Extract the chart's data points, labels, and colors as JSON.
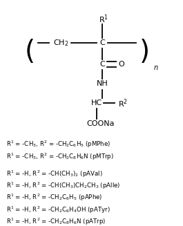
{
  "bg_color": "#ffffff",
  "legend_lines": [
    [
      "R$^1$",
      " = -CH$_3$, R$^2$ = -CH$_2$C$_6$H$_5$ (pMPhe)"
    ],
    [
      "R$^1$",
      " = -CH$_3$, R$^2$ = -CH$_2$C$_8$H$_6$N (pMTrp)"
    ],
    [
      "",
      ""
    ],
    [
      "R$^1$",
      " = -H, R$^2$ = -CH(CH$_3$)$_2$ (pAVal)"
    ],
    [
      "R$^1$",
      " = -H, R$^2$ = -CH(CH$_3$)CH$_2$CH$_3$ (pAlle)"
    ],
    [
      "R$^1$",
      " = -H, R$^2$ = -CH$_2$C$_6$H$_5$ (pAPhe)"
    ],
    [
      "R$^1$",
      " = -H, R$^2$ = -CH$_2$C$_6$H$_4$OH (pATyr)"
    ],
    [
      "R$^1$",
      " = -H, R$^2$ = -CH$_2$C$_8$H$_6$N (pATrp)"
    ]
  ],
  "lw": 1.3,
  "fs_struct": 8.0,
  "fs_legend": 6.2
}
